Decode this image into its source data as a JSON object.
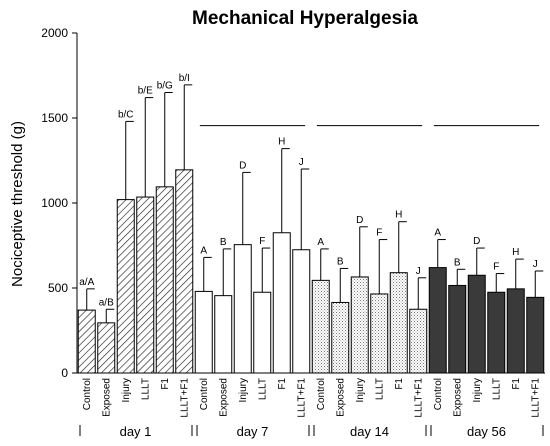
{
  "chart_data": {
    "type": "bar",
    "title": "Mechanical Hyperalgesia",
    "ylabel": "Nociceptive threshold (g)",
    "xlabel": "",
    "ylim": [
      0,
      2000
    ],
    "yticks": [
      0,
      500,
      1000,
      1500,
      2000
    ],
    "categories": [
      "Control",
      "Exposed",
      "Injury",
      "LLLT",
      "F1",
      "LLLT+F1"
    ],
    "groups": [
      {
        "label": "day 1",
        "fill": "hatch",
        "values": [
          370,
          295,
          1020,
          1035,
          1095,
          1195
        ],
        "errors": [
          125,
          80,
          460,
          585,
          555,
          500
        ],
        "annotations": [
          "a/A",
          "a/B",
          "b/C",
          "b/E",
          "b/G",
          "b/I"
        ]
      },
      {
        "label": "day 7",
        "fill": "white",
        "values": [
          480,
          455,
          755,
          475,
          825,
          725
        ],
        "errors": [
          200,
          275,
          425,
          260,
          495,
          475
        ],
        "annotations": [
          "A",
          "B",
          "D",
          "F",
          "H",
          "J"
        ]
      },
      {
        "label": "day 14",
        "fill": "dotted",
        "values": [
          545,
          415,
          565,
          465,
          590,
          375
        ],
        "errors": [
          185,
          200,
          295,
          320,
          300,
          185
        ],
        "annotations": [
          "A",
          "B",
          "D",
          "F",
          "H",
          "J"
        ]
      },
      {
        "label": "day 56",
        "fill": "dark",
        "values": [
          620,
          515,
          575,
          475,
          495,
          445
        ],
        "errors": [
          165,
          95,
          160,
          110,
          175,
          155
        ],
        "annotations": [
          "A",
          "B",
          "D",
          "F",
          "H",
          "J"
        ]
      }
    ],
    "bracket_value": 1455,
    "grid": false,
    "legend": "none"
  }
}
